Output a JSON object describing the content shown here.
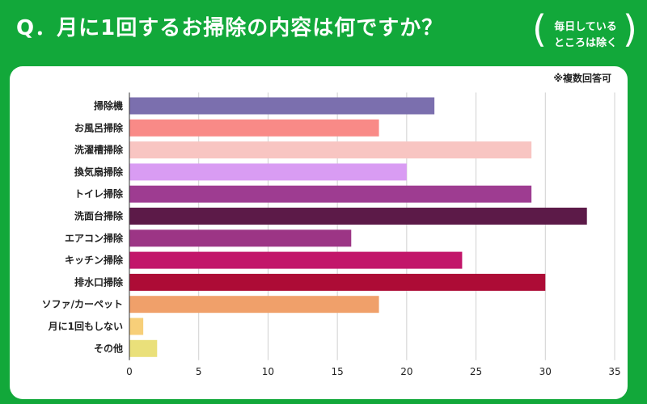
{
  "title": "Q．月に1回するお掃除の内容は何ですか？",
  "note": {
    "line1": "毎日している",
    "line2": "ところは除く"
  },
  "subnote": "※複数回答可",
  "chart_data": {
    "type": "bar",
    "orientation": "horizontal",
    "categories": [
      "掃除機",
      "お風呂掃除",
      "洗濯槽掃除",
      "換気扇掃除",
      "トイレ掃除",
      "洗面台掃除",
      "エアコン掃除",
      "キッチン掃除",
      "排水口掃除",
      "ソファ/カーペット",
      "月に1回もしない",
      "その他"
    ],
    "values": [
      22,
      18,
      29,
      20,
      29,
      33,
      16,
      24,
      30,
      18,
      1,
      2
    ],
    "colors": [
      "#7b6fae",
      "#f98a87",
      "#f8c5c2",
      "#d99cf3",
      "#9e3c91",
      "#5c1a48",
      "#9c3585",
      "#c2166a",
      "#ad0c36",
      "#f0a06a",
      "#f7cf79",
      "#eae07a"
    ],
    "xlim": [
      0,
      35
    ],
    "xticks": [
      0,
      5,
      10,
      15,
      20,
      25,
      30,
      35
    ],
    "grid": true
  }
}
